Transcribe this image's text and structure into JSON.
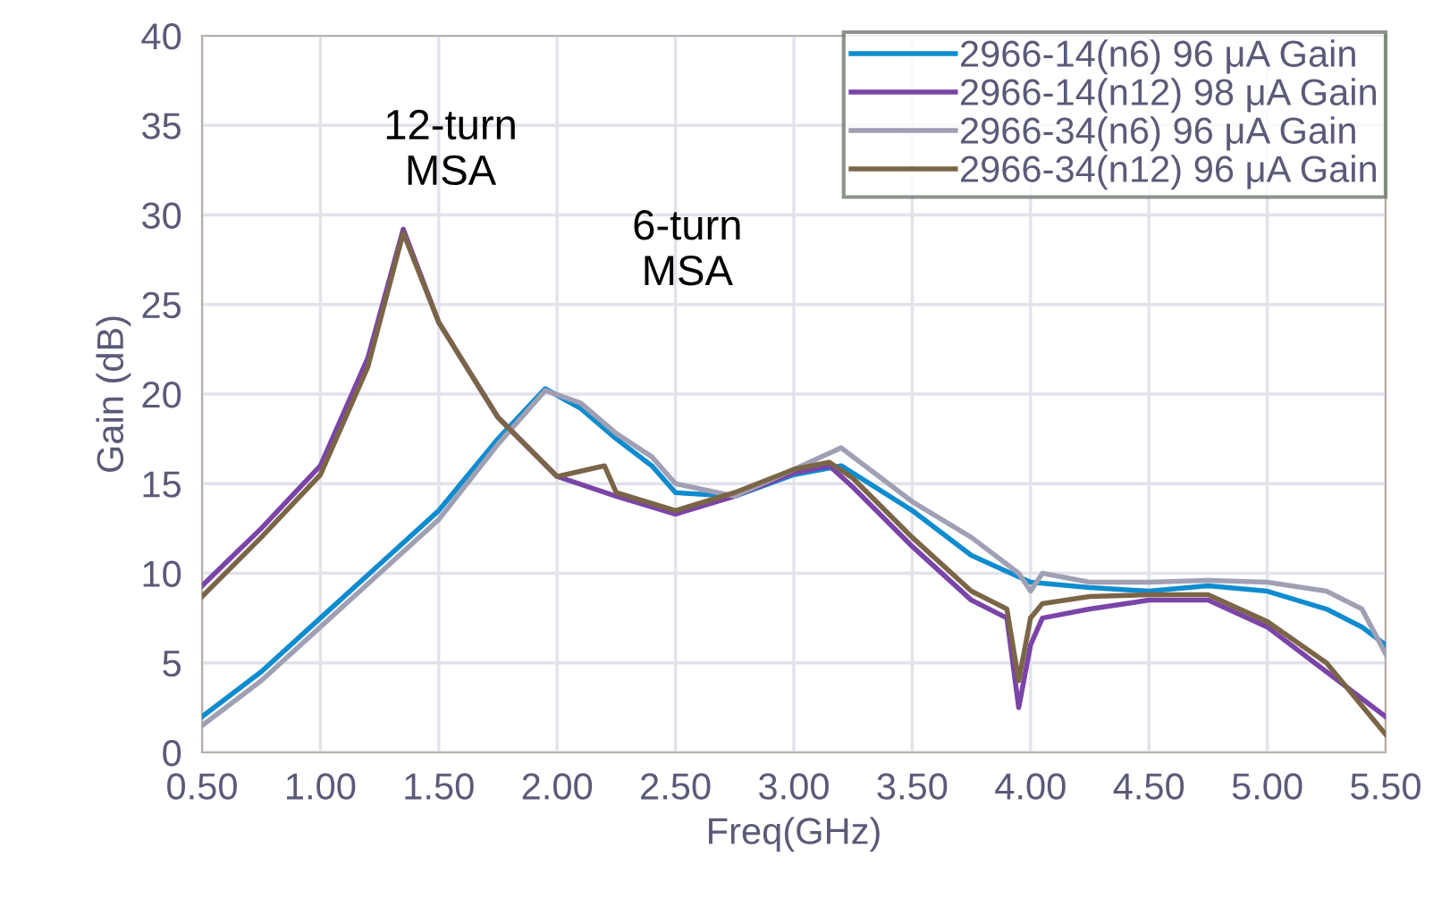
{
  "chart_data": {
    "type": "line",
    "xlabel": "Freq(GHz)",
    "ylabel": "Gain (dB)",
    "xlim": [
      0.5,
      5.5
    ],
    "xticks": [
      {
        "value": 0.5,
        "label": "0.50"
      },
      {
        "value": 1.0,
        "label": "1.00"
      },
      {
        "value": 1.5,
        "label": "1.50"
      },
      {
        "value": 2.0,
        "label": "2.00"
      },
      {
        "value": 2.5,
        "label": "2.50"
      },
      {
        "value": 3.0,
        "label": "3.00"
      },
      {
        "value": 3.5,
        "label": "3.50"
      },
      {
        "value": 4.0,
        "label": "4.00"
      },
      {
        "value": 4.5,
        "label": "4.50"
      },
      {
        "value": 5.0,
        "label": "5.00"
      },
      {
        "value": 5.5,
        "label": "5.50"
      }
    ],
    "ylim": [
      0,
      40
    ],
    "yticks": [
      0,
      5,
      10,
      15,
      20,
      25,
      30,
      35,
      40
    ],
    "grid": true,
    "legend": "top right",
    "marker": "none",
    "line_style": "solid",
    "annotations": [
      "12-turn\nMSA",
      "6-turn\nMSA"
    ],
    "series": [
      {
        "name": "2966-14(n6) 96 μA Gain",
        "color": "#0f8ccf",
        "x": [
          0.5,
          0.75,
          1.0,
          1.25,
          1.5,
          1.75,
          1.95,
          2.1,
          2.25,
          2.4,
          2.5,
          2.75,
          3.0,
          3.2,
          3.5,
          3.75,
          4.0,
          4.25,
          4.5,
          4.75,
          5.0,
          5.25,
          5.4,
          5.5
        ],
        "values": [
          2,
          4.5,
          7.5,
          10.5,
          13.5,
          17.5,
          20.3,
          19.2,
          17.5,
          16,
          14.5,
          14.3,
          15.5,
          16,
          13.5,
          11,
          9.5,
          9.2,
          9,
          9.3,
          9,
          8,
          7,
          6
        ]
      },
      {
        "name": "2966-14(n12) 98 μA Gain",
        "color": "#7b44a8",
        "x": [
          0.5,
          0.75,
          1.0,
          1.2,
          1.35,
          1.5,
          1.75,
          2.0,
          2.25,
          2.5,
          2.75,
          3.0,
          3.15,
          3.25,
          3.5,
          3.75,
          3.9,
          3.95,
          4.0,
          4.05,
          4.25,
          4.5,
          4.75,
          5.0,
          5.25,
          5.5
        ],
        "values": [
          9.3,
          12.5,
          16,
          22,
          29.2,
          24,
          18.7,
          15.4,
          14.3,
          13.3,
          14.3,
          15.6,
          16,
          14.8,
          11.5,
          8.5,
          7.5,
          2.5,
          6,
          7.5,
          8,
          8.5,
          8.5,
          7,
          4.5,
          2
        ]
      },
      {
        "name": "2966-34(n6) 96 μA Gain",
        "color": "#a0a0b4",
        "x": [
          0.5,
          0.75,
          1.0,
          1.25,
          1.5,
          1.75,
          1.95,
          2.1,
          2.25,
          2.4,
          2.5,
          2.75,
          3.0,
          3.2,
          3.5,
          3.75,
          3.95,
          4.0,
          4.05,
          4.25,
          4.5,
          4.75,
          5.0,
          5.25,
          5.4,
          5.5
        ],
        "values": [
          1.5,
          4,
          7,
          10,
          13,
          17.2,
          20.2,
          19.5,
          17.8,
          16.5,
          15,
          14.3,
          15.8,
          17,
          14,
          12,
          10,
          9,
          10,
          9.5,
          9.5,
          9.6,
          9.5,
          9,
          8,
          5.5
        ]
      },
      {
        "name": "2966-34(n12) 96 μA Gain",
        "color": "#7b6547",
        "x": [
          0.5,
          0.75,
          1.0,
          1.2,
          1.35,
          1.5,
          1.75,
          2.0,
          2.2,
          2.25,
          2.5,
          2.75,
          3.0,
          3.15,
          3.25,
          3.5,
          3.75,
          3.9,
          3.95,
          4.0,
          4.05,
          4.25,
          4.5,
          4.75,
          5.0,
          5.25,
          5.5
        ],
        "values": [
          8.7,
          12,
          15.5,
          21.5,
          29,
          24,
          18.7,
          15.4,
          16,
          14.5,
          13.5,
          14.5,
          15.8,
          16.2,
          15.3,
          12,
          9,
          8,
          4,
          7.5,
          8.3,
          8.7,
          8.8,
          8.8,
          7.3,
          5,
          1
        ]
      }
    ]
  }
}
